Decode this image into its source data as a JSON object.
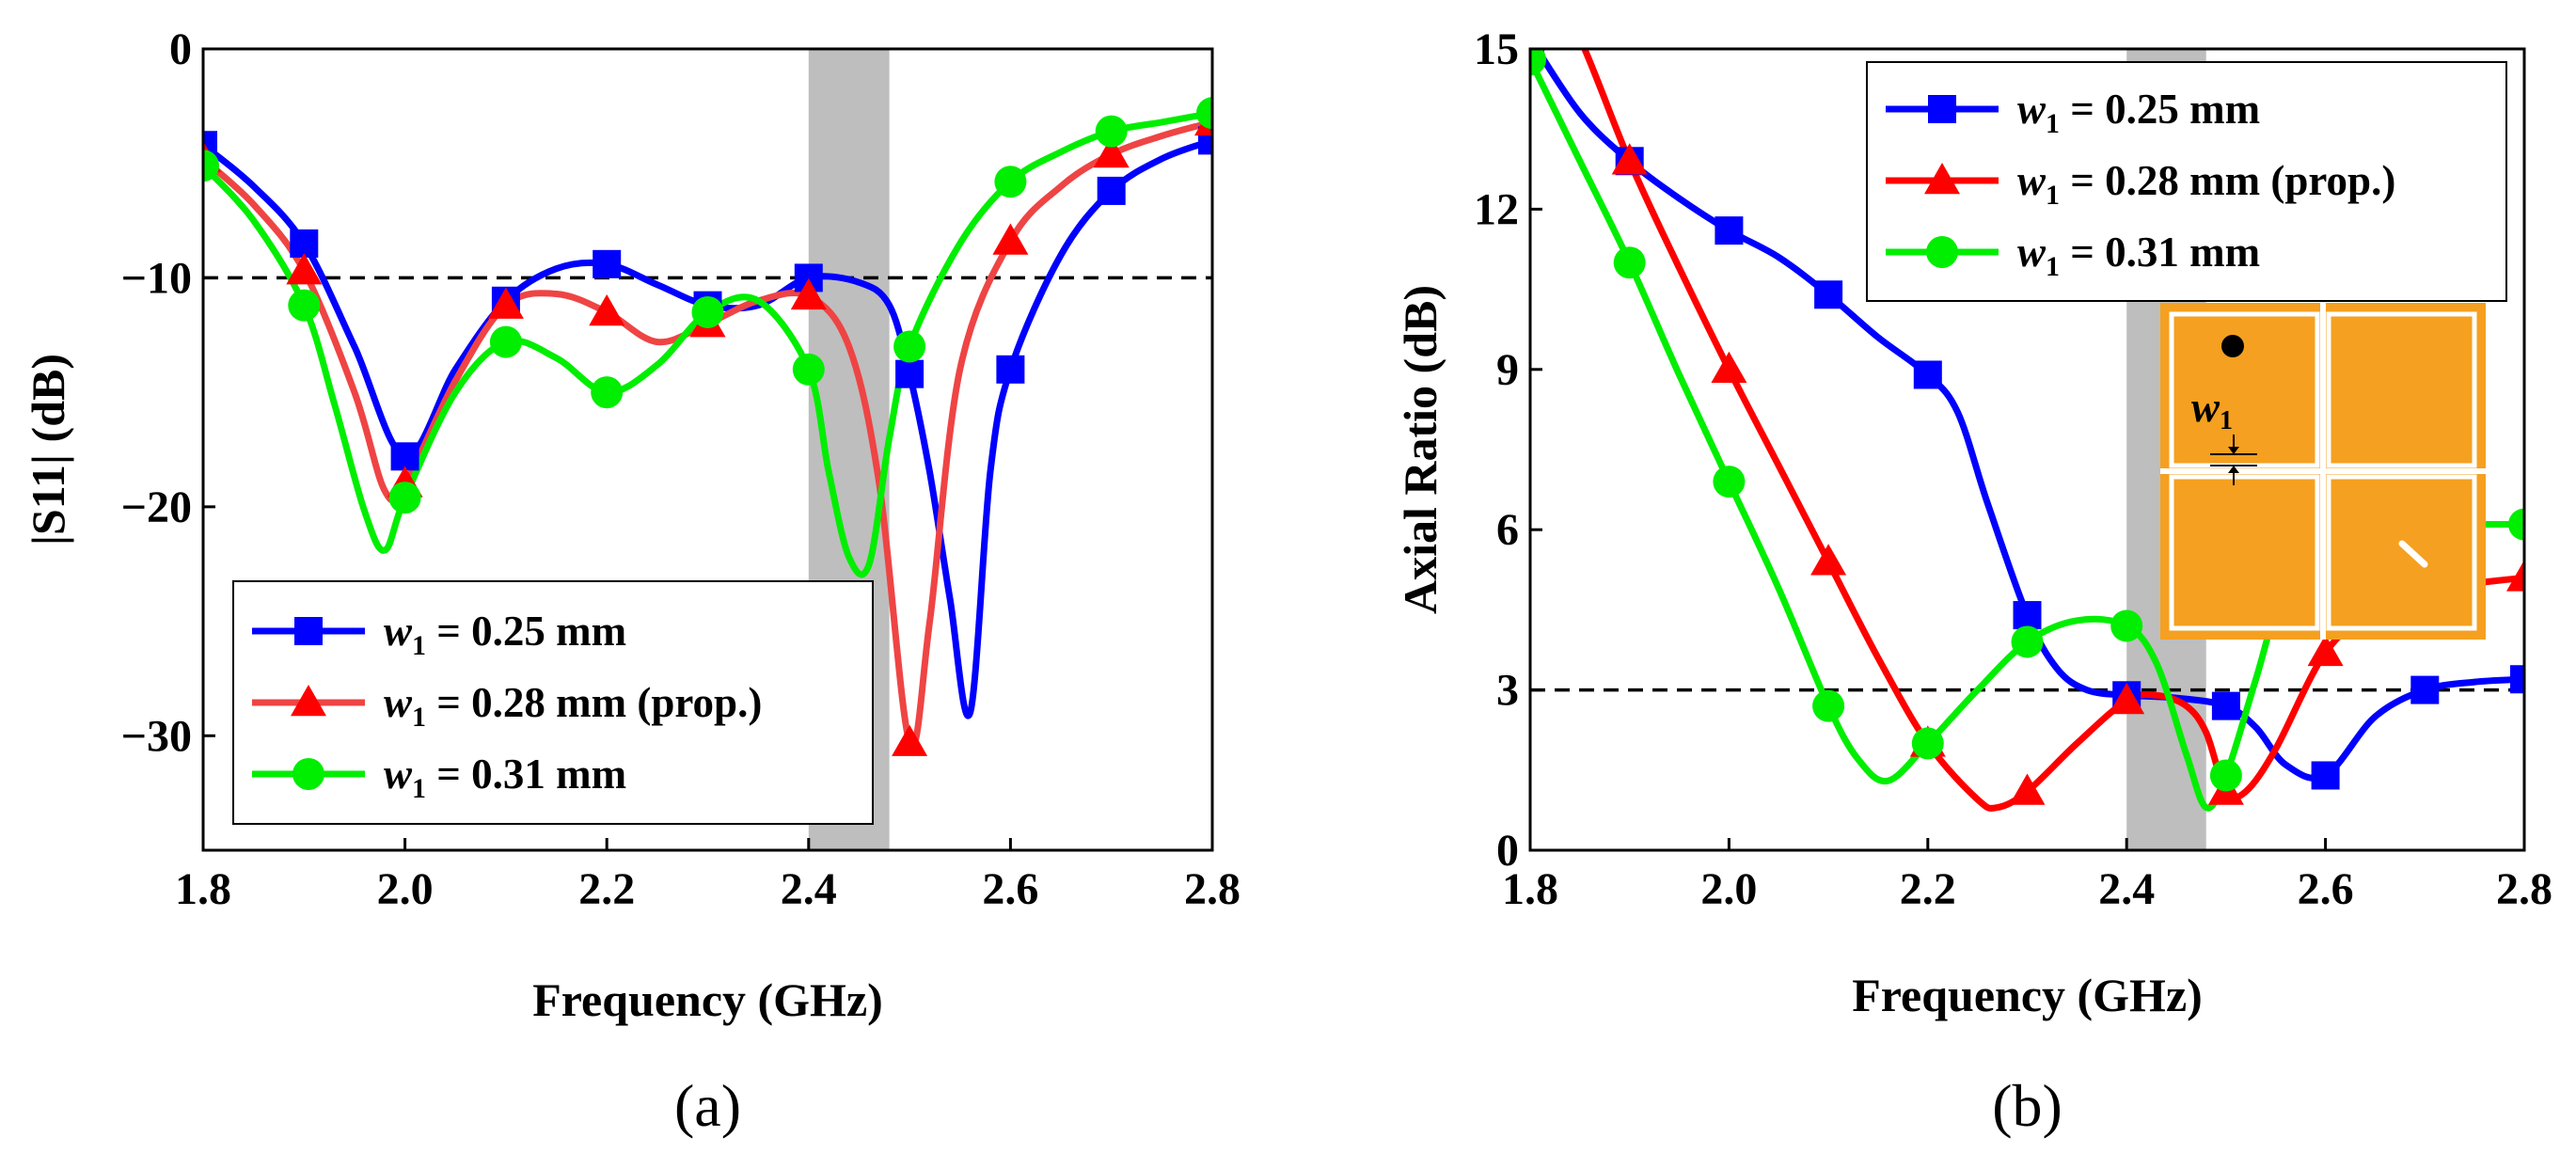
{
  "chart_data": [
    {
      "type": "line",
      "panel_label": "(a)",
      "xlabel": "Frequency (GHz)",
      "ylabel": "|S11| (dB)",
      "xlim": [
        1.8,
        2.8
      ],
      "ylim": [
        -35,
        0
      ],
      "xticks": [
        1.8,
        2.0,
        2.2,
        2.4,
        2.6,
        2.8
      ],
      "xtick_labels": [
        "1.8",
        "2.0",
        "2.2",
        "2.4",
        "2.6",
        "2.8"
      ],
      "yticks": [
        0,
        -10,
        -20,
        -30
      ],
      "ytick_labels": [
        "0",
        "−10",
        "−20",
        "−30"
      ],
      "reference_line": -10,
      "shaded_band": [
        2.4,
        2.48
      ],
      "legend_position": "bottom-left",
      "series": [
        {
          "name": "w1 = 0.25 mm",
          "legend_symbol": "w",
          "legend_sub": "1",
          "legend_rest": " = 0.25 mm",
          "color": "#0000ff",
          "marker": "square",
          "curve_x": [
            1.8,
            1.85,
            1.9,
            1.95,
            2.0,
            2.05,
            2.1,
            2.15,
            2.2,
            2.25,
            2.3,
            2.35,
            2.4,
            2.45,
            2.48,
            2.5,
            2.52,
            2.54,
            2.56,
            2.58,
            2.6,
            2.65,
            2.7,
            2.75,
            2.8
          ],
          "curve_y": [
            -4.2,
            -6,
            -8.5,
            -13,
            -17.8,
            -14,
            -11,
            -9.6,
            -9.4,
            -10.3,
            -11.2,
            -11.2,
            -10,
            -10.2,
            -11.2,
            -14.2,
            -18.5,
            -24,
            -29,
            -18.5,
            -14,
            -9,
            -6.2,
            -4.8,
            -4
          ],
          "marker_x": [
            1.8,
            1.9,
            2.0,
            2.1,
            2.2,
            2.3,
            2.4,
            2.5,
            2.6,
            2.7,
            2.8
          ],
          "marker_y": [
            -4.2,
            -8.5,
            -17.8,
            -11,
            -9.4,
            -11.2,
            -10,
            -14.2,
            -14,
            -6.2,
            -4
          ]
        },
        {
          "name": "w1 = 0.28 mm (prop.)",
          "legend_symbol": "w",
          "legend_sub": "1",
          "legend_rest": " = 0.28 mm (prop.)",
          "color": "#ef4444",
          "marker_color": "#ff0000",
          "marker": "triangle",
          "curve_x": [
            1.8,
            1.85,
            1.9,
            1.95,
            1.98,
            2.0,
            2.05,
            2.1,
            2.15,
            2.2,
            2.25,
            2.3,
            2.35,
            2.4,
            2.44,
            2.47,
            2.5,
            2.52,
            2.55,
            2.6,
            2.65,
            2.7,
            2.75,
            2.8
          ],
          "curve_y": [
            -4.8,
            -6.8,
            -9.7,
            -15,
            -19.3,
            -19,
            -14.5,
            -11.2,
            -10.7,
            -11.5,
            -12.8,
            -12,
            -11,
            -10.8,
            -13,
            -19,
            -30.3,
            -25,
            -14,
            -8.4,
            -6,
            -4.6,
            -3.8,
            -3.2
          ],
          "marker_x": [
            1.8,
            1.9,
            2.0,
            2.1,
            2.2,
            2.3,
            2.4,
            2.5,
            2.6,
            2.7,
            2.8
          ],
          "marker_y": [
            -4.8,
            -9.7,
            -19,
            -11.2,
            -11.5,
            -12,
            -10.8,
            -30.3,
            -8.4,
            -4.6,
            -3.2
          ]
        },
        {
          "name": "w1 = 0.31 mm",
          "legend_symbol": "w",
          "legend_sub": "1",
          "legend_rest": " = 0.31 mm",
          "color": "#00ee00",
          "marker": "circle",
          "curve_x": [
            1.8,
            1.85,
            1.9,
            1.93,
            1.96,
            1.98,
            2.0,
            2.05,
            2.1,
            2.15,
            2.2,
            2.25,
            2.3,
            2.35,
            2.4,
            2.42,
            2.44,
            2.46,
            2.48,
            2.5,
            2.55,
            2.6,
            2.65,
            2.7,
            2.75,
            2.8
          ],
          "curve_y": [
            -5.1,
            -7.5,
            -11.2,
            -15.5,
            -20.2,
            -21.9,
            -19.6,
            -15,
            -12.8,
            -13.5,
            -15,
            -13.8,
            -11.5,
            -11,
            -14,
            -18.5,
            -22.2,
            -22.5,
            -17,
            -13,
            -8.5,
            -5.8,
            -4.5,
            -3.6,
            -3.2,
            -2.8
          ],
          "marker_x": [
            1.8,
            1.9,
            2.0,
            2.1,
            2.2,
            2.3,
            2.4,
            2.5,
            2.6,
            2.7,
            2.8
          ],
          "marker_y": [
            -5.1,
            -11.2,
            -19.6,
            -12.8,
            -15,
            -11.5,
            -14,
            -13,
            -5.8,
            -3.6,
            -2.8
          ]
        }
      ]
    },
    {
      "type": "line",
      "panel_label": "(b)",
      "xlabel": "Frequency (GHz)",
      "ylabel": "Axial Ratio (dB)",
      "xlim": [
        1.8,
        2.8
      ],
      "ylim": [
        0,
        15
      ],
      "xticks": [
        1.8,
        2.0,
        2.2,
        2.4,
        2.6,
        2.8
      ],
      "xtick_labels": [
        "1.8",
        "2.0",
        "2.2",
        "2.4",
        "2.6",
        "2.8"
      ],
      "yticks": [
        0,
        3,
        6,
        9,
        12,
        15
      ],
      "ytick_labels": [
        "0",
        "3",
        "6",
        "9",
        "12",
        "15"
      ],
      "reference_line": 3,
      "shaded_band": [
        2.4,
        2.48
      ],
      "legend_position": "top-right",
      "inset": "antenna layout with four orange square patches and w1 gap annotation",
      "inset_label_symbol": "w",
      "inset_label_sub": "1",
      "series": [
        {
          "name": "w1 = 0.25 mm",
          "legend_symbol": "w",
          "legend_sub": "1",
          "legend_rest": " = 0.25 mm",
          "color": "#0000ff",
          "marker": "square",
          "curve_x": [
            1.8,
            1.85,
            1.9,
            1.95,
            2.0,
            2.05,
            2.1,
            2.15,
            2.2,
            2.23,
            2.26,
            2.3,
            2.33,
            2.36,
            2.4,
            2.45,
            2.5,
            2.53,
            2.56,
            2.6,
            2.65,
            2.7,
            2.75,
            2.8
          ],
          "curve_y": [
            15.2,
            13.8,
            12.9,
            12.2,
            11.6,
            11.1,
            10.4,
            9.6,
            8.9,
            8.2,
            6.5,
            4.4,
            3.4,
            3.0,
            2.9,
            2.85,
            2.7,
            2.3,
            1.6,
            1.4,
            2.5,
            3.0,
            3.15,
            3.2
          ],
          "marker_x": [
            1.8,
            1.9,
            2.0,
            2.1,
            2.2,
            2.3,
            2.4,
            2.5,
            2.6,
            2.7,
            2.8
          ],
          "marker_y": [
            15.2,
            12.9,
            11.6,
            10.4,
            8.9,
            4.4,
            2.9,
            2.7,
            1.4,
            3.0,
            3.2
          ]
        },
        {
          "name": "w1 = 0.28 mm (prop.)",
          "legend_symbol": "w",
          "legend_sub": "1",
          "legend_rest": " = 0.28 mm (prop.)",
          "color": "#ff0000",
          "marker": "triangle",
          "curve_x": [
            1.8,
            1.85,
            1.9,
            1.95,
            2.0,
            2.05,
            2.1,
            2.15,
            2.2,
            2.25,
            2.27,
            2.3,
            2.35,
            2.4,
            2.43,
            2.46,
            2.48,
            2.5,
            2.52,
            2.55,
            2.6,
            2.65,
            2.7,
            2.75,
            2.8
          ],
          "curve_y": [
            17,
            15.2,
            12.9,
            10.9,
            9.0,
            7.2,
            5.4,
            3.6,
            2.0,
            0.95,
            0.8,
            1.1,
            2.0,
            2.8,
            2.9,
            2.7,
            2.2,
            1.1,
            1.1,
            1.9,
            3.7,
            4.5,
            4.9,
            5.0,
            5.1
          ],
          "marker_x": [
            1.9,
            2.0,
            2.1,
            2.2,
            2.3,
            2.4,
            2.5,
            2.6,
            2.8
          ],
          "marker_y": [
            12.9,
            9.0,
            5.4,
            2.0,
            1.1,
            2.8,
            1.1,
            3.7,
            5.1
          ]
        },
        {
          "name": "w1 = 0.31 mm",
          "legend_symbol": "w",
          "legend_sub": "1",
          "legend_rest": " = 0.31 mm",
          "color": "#00ee00",
          "marker": "circle",
          "curve_x": [
            1.8,
            1.85,
            1.9,
            1.95,
            2.0,
            2.05,
            2.1,
            2.13,
            2.16,
            2.2,
            2.25,
            2.3,
            2.35,
            2.4,
            2.43,
            2.46,
            2.48,
            2.5,
            2.53,
            2.56,
            2.6,
            2.65,
            2.7,
            2.75,
            2.8
          ],
          "curve_y": [
            14.8,
            12.9,
            11.0,
            8.9,
            6.9,
            4.9,
            2.7,
            1.7,
            1.3,
            2.0,
            3.0,
            3.9,
            4.3,
            4.2,
            3.5,
            1.8,
            0.8,
            1.4,
            3.2,
            5.0,
            5.8,
            6.0,
            6.1,
            6.1,
            6.1
          ],
          "marker_x": [
            1.8,
            1.9,
            2.0,
            2.1,
            2.2,
            2.3,
            2.4,
            2.5,
            2.8
          ],
          "marker_y": [
            14.8,
            11.0,
            6.9,
            2.7,
            2.0,
            3.9,
            4.2,
            1.4,
            6.1
          ]
        }
      ]
    }
  ]
}
